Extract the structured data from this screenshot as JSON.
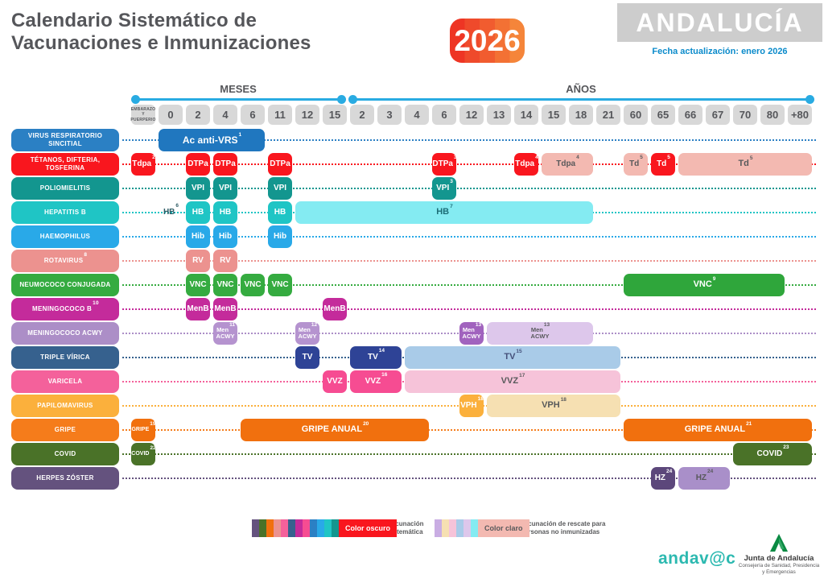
{
  "header": {
    "title_line1": "Calendario Sistemático de",
    "title_line2": "Vacunaciones e Inmunizaciones",
    "year_badge": "2026",
    "region": "ANDALUCÍA",
    "update_note": "Fecha actualización: enero 2026"
  },
  "timeline": {
    "months_label": "MESES",
    "years_label": "AÑOS",
    "color": "#29ABE2"
  },
  "columns": [
    {
      "lines": [
        "EMBARAZO",
        "Y",
        "PUERPERIO"
      ]
    },
    {
      "label": "0"
    },
    {
      "label": "2"
    },
    {
      "label": "4"
    },
    {
      "label": "6"
    },
    {
      "label": "11"
    },
    {
      "label": "12"
    },
    {
      "label": "15"
    },
    {
      "label": "2"
    },
    {
      "label": "3"
    },
    {
      "label": "4"
    },
    {
      "label": "6"
    },
    {
      "label": "12"
    },
    {
      "label": "13"
    },
    {
      "label": "14"
    },
    {
      "label": "15"
    },
    {
      "label": "18"
    },
    {
      "label": "21"
    },
    {
      "label": "60"
    },
    {
      "label": "65"
    },
    {
      "label": "66"
    },
    {
      "label": "67"
    },
    {
      "label": "70"
    },
    {
      "label": "80"
    },
    {
      "label": "+80"
    }
  ],
  "rows": [
    {
      "name": "virus-respiratorio-sincitial",
      "label": "VIRUS RESPIRATORIO SINCITIAL",
      "color": "#2B80C4",
      "boxes": [
        {
          "text": "Ac anti-VRS",
          "sup": "1",
          "from": 1,
          "to": 4,
          "bg": "#2077BF",
          "size": 12
        }
      ]
    },
    {
      "name": "tetanos-difteria-tosferina",
      "label": "TÉTANOS, DIFTERIA, TOSFERINA",
      "color": "#F9161E",
      "boxes": [
        {
          "text": "Tdpa",
          "sup": "2",
          "from": 0,
          "to": 0,
          "bg": "#F9161E"
        },
        {
          "text": "DTPa",
          "from": 2,
          "to": 2,
          "bg": "#F9161E"
        },
        {
          "text": "DTPa",
          "from": 3,
          "to": 3,
          "bg": "#F9161E"
        },
        {
          "text": "DTPa",
          "from": 5,
          "to": 5,
          "bg": "#F9161E"
        },
        {
          "text": "DTPa",
          "sup": "3",
          "from": 11,
          "to": 11,
          "bg": "#F9161E"
        },
        {
          "text": "Tdpa",
          "sup": "4",
          "from": 14,
          "to": 14,
          "bg": "#F9161E"
        },
        {
          "text": "Tdpa",
          "sup": "4",
          "from": 15,
          "to": 16,
          "bg": "#F3B9B1",
          "fg": "#58595B"
        },
        {
          "text": "Td",
          "sup": "5",
          "from": 18,
          "to": 18,
          "bg": "#F3B9B1",
          "fg": "#58595B"
        },
        {
          "text": "Td",
          "sup": "5",
          "from": 19,
          "to": 19,
          "bg": "#F9161E"
        },
        {
          "text": "Td",
          "sup": "5",
          "from": 20,
          "to": 24,
          "bg": "#F3B9B1",
          "fg": "#58595B"
        }
      ]
    },
    {
      "name": "poliomielitis",
      "label": "POLIOMIELITIS",
      "color": "#13968F",
      "boxes": [
        {
          "text": "VPI",
          "from": 2,
          "to": 2,
          "bg": "#13968F"
        },
        {
          "text": "VPI",
          "from": 3,
          "to": 3,
          "bg": "#13968F"
        },
        {
          "text": "VPI",
          "from": 5,
          "to": 5,
          "bg": "#13968F"
        },
        {
          "text": "VPI",
          "sup": "3",
          "from": 11,
          "to": 11,
          "bg": "#13968F"
        }
      ]
    },
    {
      "name": "hepatitis-b",
      "label": "HEPATITIS B",
      "color": "#1FC5C5",
      "boxes": [
        {
          "text": "HB",
          "sup": "6",
          "from": 1,
          "to": 1,
          "bg": "none",
          "fg": "#2F5D66"
        },
        {
          "text": "HB",
          "from": 2,
          "to": 2,
          "bg": "#1FC5C5"
        },
        {
          "text": "HB",
          "from": 3,
          "to": 3,
          "bg": "#1FC5C5"
        },
        {
          "text": "HB",
          "from": 5,
          "to": 5,
          "bg": "#1FC5C5"
        },
        {
          "text": "HB",
          "sup": "7",
          "from": 6,
          "to": 16,
          "bg": "#84EBF2",
          "fg": "#1D6E77"
        }
      ]
    },
    {
      "name": "haemophilus",
      "label": "HAEMOPHILUS",
      "color": "#29A9E8",
      "boxes": [
        {
          "text": "Hib",
          "from": 2,
          "to": 2,
          "bg": "#29A9E8"
        },
        {
          "text": "Hib",
          "from": 3,
          "to": 3,
          "bg": "#29A9E8"
        },
        {
          "text": "Hib",
          "from": 5,
          "to": 5,
          "bg": "#29A9E8"
        }
      ]
    },
    {
      "name": "rotavirus",
      "label": "ROTAVIRUS",
      "label_sup": "8",
      "color": "#EC928F",
      "boxes": [
        {
          "text": "RV",
          "from": 2,
          "to": 2,
          "bg": "#EC928F"
        },
        {
          "text": "RV",
          "from": 3,
          "to": 3,
          "bg": "#EC928F"
        }
      ]
    },
    {
      "name": "neumococo-conjugada",
      "label": "NEUMOCOCO CONJUGADA",
      "color": "#35AB40",
      "boxes": [
        {
          "text": "VNC",
          "from": 2,
          "to": 2,
          "bg": "#35AB40"
        },
        {
          "text": "VNC",
          "from": 3,
          "to": 3,
          "bg": "#35AB40"
        },
        {
          "text": "VNC",
          "from": 4,
          "to": 4,
          "bg": "#35AB40"
        },
        {
          "text": "VNC",
          "from": 5,
          "to": 5,
          "bg": "#35AB40"
        },
        {
          "text": "VNC",
          "sup": "9",
          "from": 18,
          "to": 23,
          "bg": "#2FA63B"
        }
      ]
    },
    {
      "name": "meningococo-b",
      "label": "MENINGOCOCO B",
      "label_sup": "10",
      "color": "#C42B9B",
      "boxes": [
        {
          "text": "MenB",
          "from": 2,
          "to": 2,
          "bg": "#C42B9B"
        },
        {
          "text": "MenB",
          "from": 3,
          "to": 3,
          "bg": "#C42B9B"
        },
        {
          "text": "MenB",
          "from": 7,
          "to": 7,
          "bg": "#C42B9B"
        }
      ]
    },
    {
      "name": "meningococo-acwy",
      "label": "MENINGOCOCO ACWY",
      "color": "#AC8EC7",
      "boxes": [
        {
          "lines": [
            "Men",
            "ACWY"
          ],
          "sup": "11",
          "from": 3,
          "to": 3,
          "bg": "#B593CF"
        },
        {
          "lines": [
            "Men",
            "ACWY"
          ],
          "sup": "12",
          "from": 6,
          "to": 6,
          "bg": "#B593CF"
        },
        {
          "lines": [
            "Men",
            "ACWY"
          ],
          "sup": "13",
          "from": 12,
          "to": 12,
          "bg": "#A163BE"
        },
        {
          "lines": [
            "Men",
            "ACWY"
          ],
          "sup": "13",
          "from": 13,
          "to": 16,
          "bg": "#DDC7EB",
          "fg": "#58595B"
        }
      ]
    },
    {
      "name": "triple-virica",
      "label": "TRIPLE VÍRICA",
      "color": "#36618E",
      "boxes": [
        {
          "text": "TV",
          "from": 6,
          "to": 6,
          "bg": "#2E4396"
        },
        {
          "text": "TV",
          "sup": "14",
          "from": 8,
          "to": 9,
          "bg": "#2E4396"
        },
        {
          "text": "TV",
          "sup": "15",
          "from": 10,
          "to": 17,
          "bg": "#A9CBE8",
          "fg": "#45507A"
        }
      ]
    },
    {
      "name": "varicela",
      "label": "VARICELA",
      "color": "#F4619B",
      "boxes": [
        {
          "text": "VVZ",
          "from": 7,
          "to": 7,
          "bg": "#F64C92"
        },
        {
          "text": "VVZ",
          "sup": "16",
          "from": 8,
          "to": 9,
          "bg": "#F64C92"
        },
        {
          "text": "VVZ",
          "sup": "17",
          "from": 10,
          "to": 17,
          "bg": "#F6C3D9",
          "fg": "#58595B"
        }
      ]
    },
    {
      "name": "papilomavirus",
      "label": "PAPILOMAVIRUS",
      "color": "#FBB03C",
      "boxes": [
        {
          "text": "VPH",
          "sup": "18",
          "from": 12,
          "to": 12,
          "bg": "#FBB03C"
        },
        {
          "text": "VPH",
          "sup": "18",
          "from": 13,
          "to": 17,
          "bg": "#F6E0B2",
          "fg": "#58595B"
        }
      ]
    },
    {
      "name": "gripe",
      "label": "GRIPE",
      "color": "#F57C1B",
      "boxes": [
        {
          "text": "GRIPE",
          "sup": "19",
          "from": 0,
          "to": 0,
          "bg": "#F1700E",
          "size": 7
        },
        {
          "text": "GRIPE ANUAL",
          "sup": "20",
          "from": 4,
          "to": 10,
          "bg": "#F1700E"
        },
        {
          "text": "GRIPE ANUAL",
          "sup": "21",
          "from": 18,
          "to": 24,
          "bg": "#F1700E"
        }
      ]
    },
    {
      "name": "covid",
      "label": "COVID",
      "color": "#4A7228",
      "boxes": [
        {
          "text": "COVID",
          "sup": "22",
          "from": 0,
          "to": 0,
          "bg": "#4A7228",
          "size": 7
        },
        {
          "text": "COVID",
          "sup": "23",
          "from": 22,
          "to": 24,
          "bg": "#4A7228"
        }
      ]
    },
    {
      "name": "herpes-zoster",
      "label": "HERPES ZÓSTER",
      "color": "#64527E",
      "boxes": [
        {
          "text": "HZ",
          "sup": "24",
          "from": 19,
          "to": 19,
          "bg": "#5C477B"
        },
        {
          "text": "HZ",
          "sup": "24",
          "from": 20,
          "to": 21,
          "bg": "#A98FC9",
          "fg": "#58595B"
        }
      ]
    }
  ],
  "legend": {
    "systematic": {
      "swatches": [
        "#64527E",
        "#4A7228",
        "#F1700E",
        "#EC928F",
        "#F4619B",
        "#36618E",
        "#C42B9B",
        "#F64C92",
        "#2B80C4",
        "#29A9E8",
        "#1FC5C5",
        "#13968F"
      ],
      "tag": "Color oscuro",
      "tag_bg": "#F9161E",
      "tag_fg": "#FFFFFF",
      "text_line1": "Vacunación",
      "text_line2": "sistemática"
    },
    "rescue": {
      "swatches": [
        "#C9ADE3",
        "#F6E0B2",
        "#F6C3D9",
        "#A9CBE8",
        "#DDC7EB",
        "#84EBF2"
      ],
      "tag": "Color claro",
      "tag_bg": "#F3B9B1",
      "tag_fg": "#58595B",
      "text_line1": "Vacunación de rescate para",
      "text_line2": "personas no inmunizadas"
    }
  },
  "footer": {
    "andavac": "andav@c",
    "junta_name": "Junta de Andalucía",
    "junta_sub1": "Consejería de Sanidad, Presidencia",
    "junta_sub2": "y Emergencias"
  }
}
